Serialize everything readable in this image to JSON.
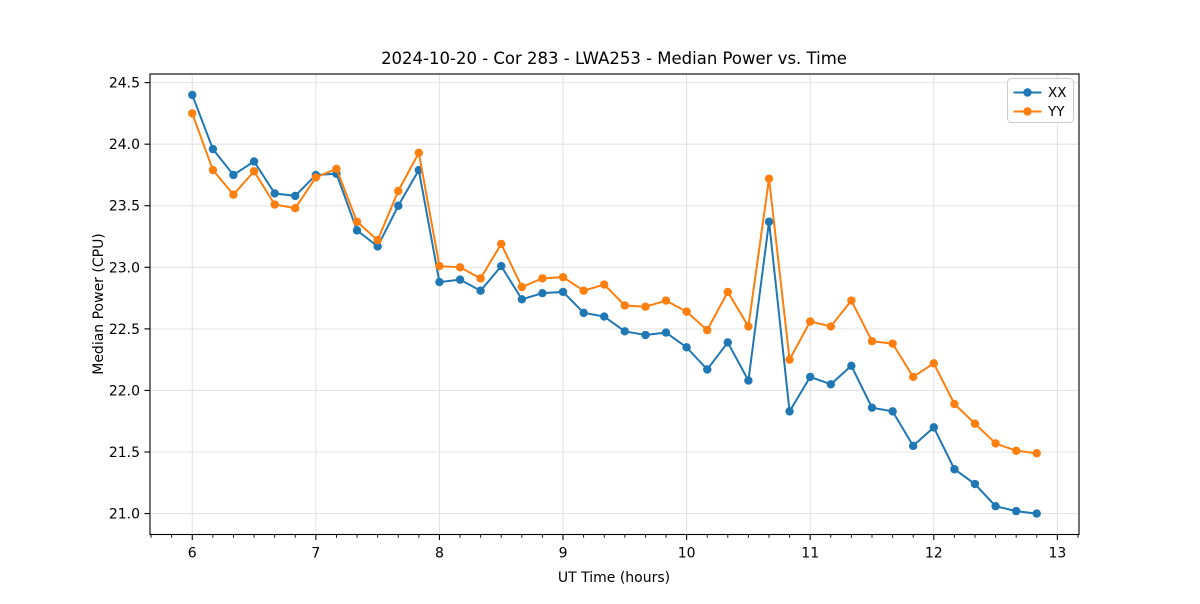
{
  "chart_data": {
    "type": "line",
    "title": "2024-10-20 - Cor 283 - LWA253 - Median Power vs. Time",
    "xlabel": "UT Time (hours)",
    "ylabel": "Median Power (CPU)",
    "xlim": [
      5.658,
      13.175
    ],
    "ylim": [
      20.83,
      24.57
    ],
    "grid": true,
    "legend_position": "top-right inside",
    "x_ticks": [
      6,
      7,
      8,
      9,
      10,
      11,
      12,
      13
    ],
    "x_tick_labels": [
      "6",
      "7",
      "8",
      "9",
      "10",
      "11",
      "12",
      "13"
    ],
    "x_minor_tick_step": 0.1666667,
    "y_ticks": [
      21.0,
      21.5,
      22.0,
      22.5,
      23.0,
      23.5,
      24.0,
      24.5
    ],
    "y_tick_labels": [
      "21.0",
      "21.5",
      "22.0",
      "22.5",
      "23.0",
      "23.5",
      "24.0",
      "24.5"
    ],
    "x": [
      6.0,
      6.167,
      6.333,
      6.5,
      6.667,
      6.833,
      7.0,
      7.167,
      7.333,
      7.5,
      7.667,
      7.833,
      8.0,
      8.167,
      8.333,
      8.5,
      8.667,
      8.833,
      9.0,
      9.167,
      9.333,
      9.5,
      9.667,
      9.833,
      10.0,
      10.167,
      10.333,
      10.5,
      10.667,
      10.833,
      11.0,
      11.167,
      11.333,
      11.5,
      11.667,
      11.833,
      12.0,
      12.167,
      12.333,
      12.5,
      12.667,
      12.833
    ],
    "series": [
      {
        "name": "XX",
        "color": "#1f77b4",
        "values": [
          24.4,
          23.96,
          23.75,
          23.86,
          23.6,
          23.58,
          23.75,
          23.76,
          23.3,
          23.17,
          23.5,
          23.79,
          22.88,
          22.9,
          22.81,
          23.01,
          22.74,
          22.79,
          22.8,
          22.63,
          22.6,
          22.48,
          22.45,
          22.47,
          22.35,
          22.17,
          22.39,
          22.08,
          23.37,
          21.83,
          22.11,
          22.05,
          22.2,
          21.86,
          21.83,
          21.55,
          21.7,
          21.36,
          21.24,
          21.06,
          21.02,
          21.0
        ]
      },
      {
        "name": "YY",
        "color": "#ff7f0e",
        "values": [
          24.25,
          23.79,
          23.59,
          23.78,
          23.51,
          23.48,
          23.73,
          23.8,
          23.37,
          23.22,
          23.62,
          23.93,
          23.01,
          23.0,
          22.91,
          23.19,
          22.84,
          22.91,
          22.92,
          22.81,
          22.86,
          22.69,
          22.68,
          22.73,
          22.64,
          22.49,
          22.8,
          22.52,
          23.72,
          22.25,
          22.56,
          22.52,
          22.73,
          22.4,
          22.38,
          22.11,
          22.22,
          21.89,
          21.73,
          21.57,
          21.51,
          21.49
        ]
      }
    ],
    "style": {
      "grid_color": "#e4e4e4",
      "spine_color": "#000000",
      "background": "#ffffff",
      "legend_border_color": "#cccccc",
      "marker_radius": 4.2,
      "line_width": 2
    }
  }
}
